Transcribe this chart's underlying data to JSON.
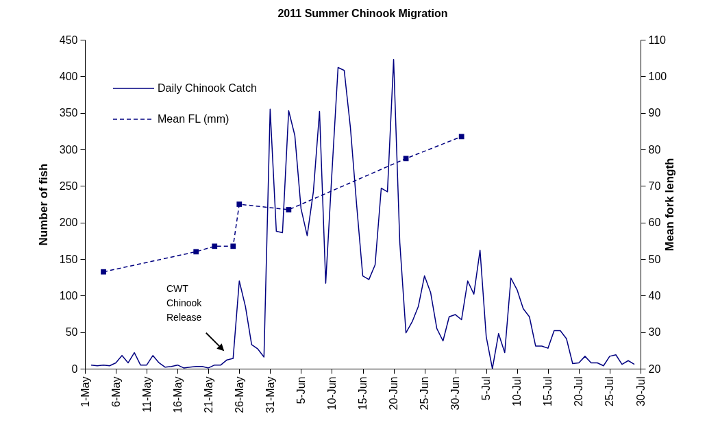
{
  "chart_data": {
    "type": "line",
    "title": "2011 Summer Chinook Migration",
    "ylabel": "Number of fish",
    "y2label": "Mean fork length",
    "xlim": [
      "2011-05-01",
      "2011-07-30"
    ],
    "xticks": [
      {
        "value": "2011-05-01",
        "label": "1-May"
      },
      {
        "value": "2011-05-06",
        "label": "6-May"
      },
      {
        "value": "2011-05-11",
        "label": "11-May"
      },
      {
        "value": "2011-05-16",
        "label": "16-May"
      },
      {
        "value": "2011-05-21",
        "label": "21-May"
      },
      {
        "value": "2011-05-26",
        "label": "26-May"
      },
      {
        "value": "2011-05-31",
        "label": "31-May"
      },
      {
        "value": "2011-06-05",
        "label": "5-Jun"
      },
      {
        "value": "2011-06-10",
        "label": "10-Jun"
      },
      {
        "value": "2011-06-15",
        "label": "15-Jun"
      },
      {
        "value": "2011-06-20",
        "label": "20-Jun"
      },
      {
        "value": "2011-06-25",
        "label": "25-Jun"
      },
      {
        "value": "2011-06-30",
        "label": "30-Jun"
      },
      {
        "value": "2011-07-05",
        "label": "5-Jul"
      },
      {
        "value": "2011-07-10",
        "label": "10-Jul"
      },
      {
        "value": "2011-07-15",
        "label": "15-Jul"
      },
      {
        "value": "2011-07-20",
        "label": "20-Jul"
      },
      {
        "value": "2011-07-25",
        "label": "25-Jul"
      },
      {
        "value": "2011-07-30",
        "label": "30-Jul"
      }
    ],
    "ylim": [
      0,
      450
    ],
    "yticks": [
      0,
      50,
      100,
      150,
      200,
      250,
      300,
      350,
      400,
      450
    ],
    "y2lim": [
      20,
      110
    ],
    "y2ticks": [
      20,
      30,
      40,
      50,
      60,
      70,
      80,
      90,
      100,
      110
    ],
    "grid": false,
    "legend": "top left",
    "annotations": [
      "CWT\nChinook\nRelease"
    ],
    "series": [
      {
        "name": "Daily Chinook Catch",
        "color": "#000080",
        "line_style": "solid",
        "marker": "none",
        "x": [
          "2011-05-02",
          "2011-05-03",
          "2011-05-04",
          "2011-05-05",
          "2011-05-06",
          "2011-05-07",
          "2011-05-08",
          "2011-05-09",
          "2011-05-10",
          "2011-05-11",
          "2011-05-12",
          "2011-05-13",
          "2011-05-14",
          "2011-05-15",
          "2011-05-16",
          "2011-05-17",
          "2011-05-18",
          "2011-05-19",
          "2011-05-20",
          "2011-05-21",
          "2011-05-22",
          "2011-05-23",
          "2011-05-24",
          "2011-05-25",
          "2011-05-26",
          "2011-05-27",
          "2011-05-28",
          "2011-05-29",
          "2011-05-30",
          "2011-05-31",
          "2011-06-01",
          "2011-06-02",
          "2011-06-03",
          "2011-06-04",
          "2011-06-05",
          "2011-06-06",
          "2011-06-07",
          "2011-06-08",
          "2011-06-09",
          "2011-06-10",
          "2011-06-11",
          "2011-06-12",
          "2011-06-13",
          "2011-06-14",
          "2011-06-15",
          "2011-06-16",
          "2011-06-17",
          "2011-06-18",
          "2011-06-19",
          "2011-06-20",
          "2011-06-21",
          "2011-06-22",
          "2011-06-23",
          "2011-06-24",
          "2011-06-25",
          "2011-06-26",
          "2011-06-27",
          "2011-06-28",
          "2011-06-29",
          "2011-06-30",
          "2011-07-01",
          "2011-07-02",
          "2011-07-03",
          "2011-07-04",
          "2011-07-05",
          "2011-07-06",
          "2011-07-07",
          "2011-07-08",
          "2011-07-09",
          "2011-07-10",
          "2011-07-11",
          "2011-07-12",
          "2011-07-13",
          "2011-07-14",
          "2011-07-15",
          "2011-07-16",
          "2011-07-17",
          "2011-07-18",
          "2011-07-19",
          "2011-07-20",
          "2011-07-21",
          "2011-07-22",
          "2011-07-23",
          "2011-07-24",
          "2011-07-25",
          "2011-07-26",
          "2011-07-27",
          "2011-07-28",
          "2011-07-29"
        ],
        "values": [
          5,
          4,
          5,
          4,
          8,
          18,
          8,
          22,
          5,
          5,
          18,
          8,
          2,
          3,
          5,
          1,
          2,
          3,
          3,
          1,
          5,
          5,
          12,
          14,
          120,
          85,
          33,
          27,
          16,
          355,
          188,
          186,
          353,
          319,
          219,
          182,
          242,
          352,
          117,
          267,
          412,
          408,
          330,
          225,
          127,
          122,
          142,
          247,
          242,
          423,
          173,
          49,
          64,
          85,
          127,
          104,
          55,
          38,
          71,
          74,
          67,
          120,
          102,
          162,
          44,
          0,
          48,
          22,
          124,
          108,
          82,
          71,
          31,
          31,
          28,
          52,
          52,
          41,
          7,
          8,
          17,
          8,
          8,
          4,
          17,
          19,
          6,
          11,
          6
        ]
      },
      {
        "name": "Mean FL (mm)",
        "color": "#000080",
        "line_style": "dashed",
        "marker": "square",
        "axis": "y2",
        "x": [
          "2011-05-04",
          "2011-05-19",
          "2011-05-22",
          "2011-05-25",
          "2011-05-26",
          "2011-06-03",
          "2011-06-22",
          "2011-07-01"
        ],
        "values": [
          46.5,
          52,
          53.5,
          53.5,
          65,
          63.5,
          77.5,
          83.5
        ]
      }
    ]
  }
}
